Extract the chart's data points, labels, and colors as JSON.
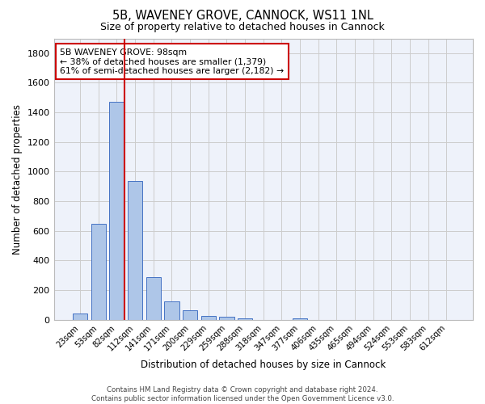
{
  "title1": "5B, WAVENEY GROVE, CANNOCK, WS11 1NL",
  "title2": "Size of property relative to detached houses in Cannock",
  "xlabel": "Distribution of detached houses by size in Cannock",
  "ylabel": "Number of detached properties",
  "bin_labels": [
    "23sqm",
    "53sqm",
    "82sqm",
    "112sqm",
    "141sqm",
    "171sqm",
    "200sqm",
    "229sqm",
    "259sqm",
    "288sqm",
    "318sqm",
    "347sqm",
    "377sqm",
    "406sqm",
    "435sqm",
    "465sqm",
    "494sqm",
    "524sqm",
    "553sqm",
    "583sqm",
    "612sqm"
  ],
  "bar_heights": [
    40,
    650,
    1470,
    935,
    290,
    125,
    65,
    25,
    20,
    10,
    0,
    0,
    10,
    0,
    0,
    0,
    0,
    0,
    0,
    0,
    0
  ],
  "bar_color": "#aec6e8",
  "bar_edge_color": "#4472c4",
  "bar_width": 0.8,
  "property_size": 98,
  "annotation_text": "5B WAVENEY GROVE: 98sqm\n← 38% of detached houses are smaller (1,379)\n61% of semi-detached houses are larger (2,182) →",
  "annotation_box_color": "#ffffff",
  "annotation_box_edge": "#cc0000",
  "ylim": [
    0,
    1900
  ],
  "yticks": [
    0,
    200,
    400,
    600,
    800,
    1000,
    1200,
    1400,
    1600,
    1800
  ],
  "grid_color": "#cccccc",
  "background_color": "#eef2fa",
  "footnote": "Contains HM Land Registry data © Crown copyright and database right 2024.\nContains public sector information licensed under the Open Government Licence v3.0."
}
